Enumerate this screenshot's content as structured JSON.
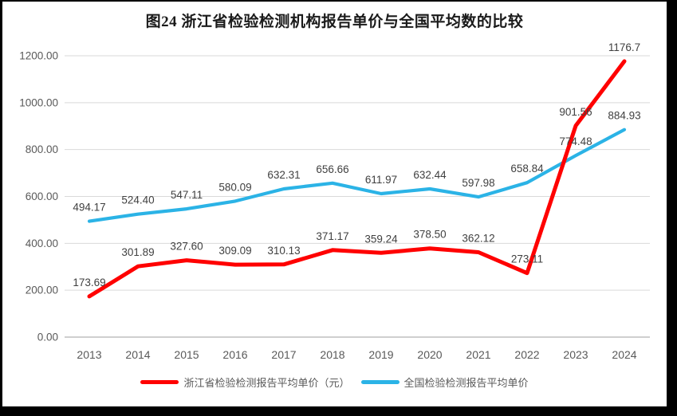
{
  "title": "图24  浙江省检验检测机构报告单价与全国平均数的比较",
  "chart_data": {
    "type": "line",
    "categories": [
      "2013",
      "2014",
      "2015",
      "2016",
      "2017",
      "2018",
      "2019",
      "2020",
      "2021",
      "2022",
      "2023",
      "2024"
    ],
    "series": [
      {
        "name": "浙江省检验检测报告平均单价（元）",
        "color": "#ff0000",
        "values": [
          173.69,
          301.89,
          327.6,
          309.09,
          310.13,
          371.17,
          359.24,
          378.5,
          362.12,
          273.11,
          901.56,
          1176.7
        ],
        "labels": [
          "173.69",
          "301.89",
          "327.60",
          "309.09",
          "310.13",
          "371.17",
          "359.24",
          "378.50",
          "362.12",
          "273.11",
          "901.56",
          "1176.7"
        ]
      },
      {
        "name": "全国检验检测报告平均单价",
        "color": "#2bb3e6",
        "values": [
          494.17,
          524.4,
          547.11,
          580.09,
          632.31,
          656.66,
          611.97,
          632.44,
          597.98,
          658.84,
          774.48,
          884.93
        ],
        "labels": [
          "494.17",
          "524.40",
          "547.11",
          "580.09",
          "632.31",
          "656.66",
          "611.97",
          "632.44",
          "597.98",
          "658.84",
          "774.48",
          "884.93"
        ]
      }
    ],
    "ylim": [
      0,
      1200
    ],
    "ytick_step": 200,
    "ytick_labels": [
      "0.00",
      "200.00",
      "400.00",
      "600.00",
      "800.00",
      "1000.00",
      "1200.00"
    ],
    "grid": true,
    "legend_position": "bottom",
    "grid_color": "#d9d9d9",
    "axis_color": "#bfbfbf"
  }
}
